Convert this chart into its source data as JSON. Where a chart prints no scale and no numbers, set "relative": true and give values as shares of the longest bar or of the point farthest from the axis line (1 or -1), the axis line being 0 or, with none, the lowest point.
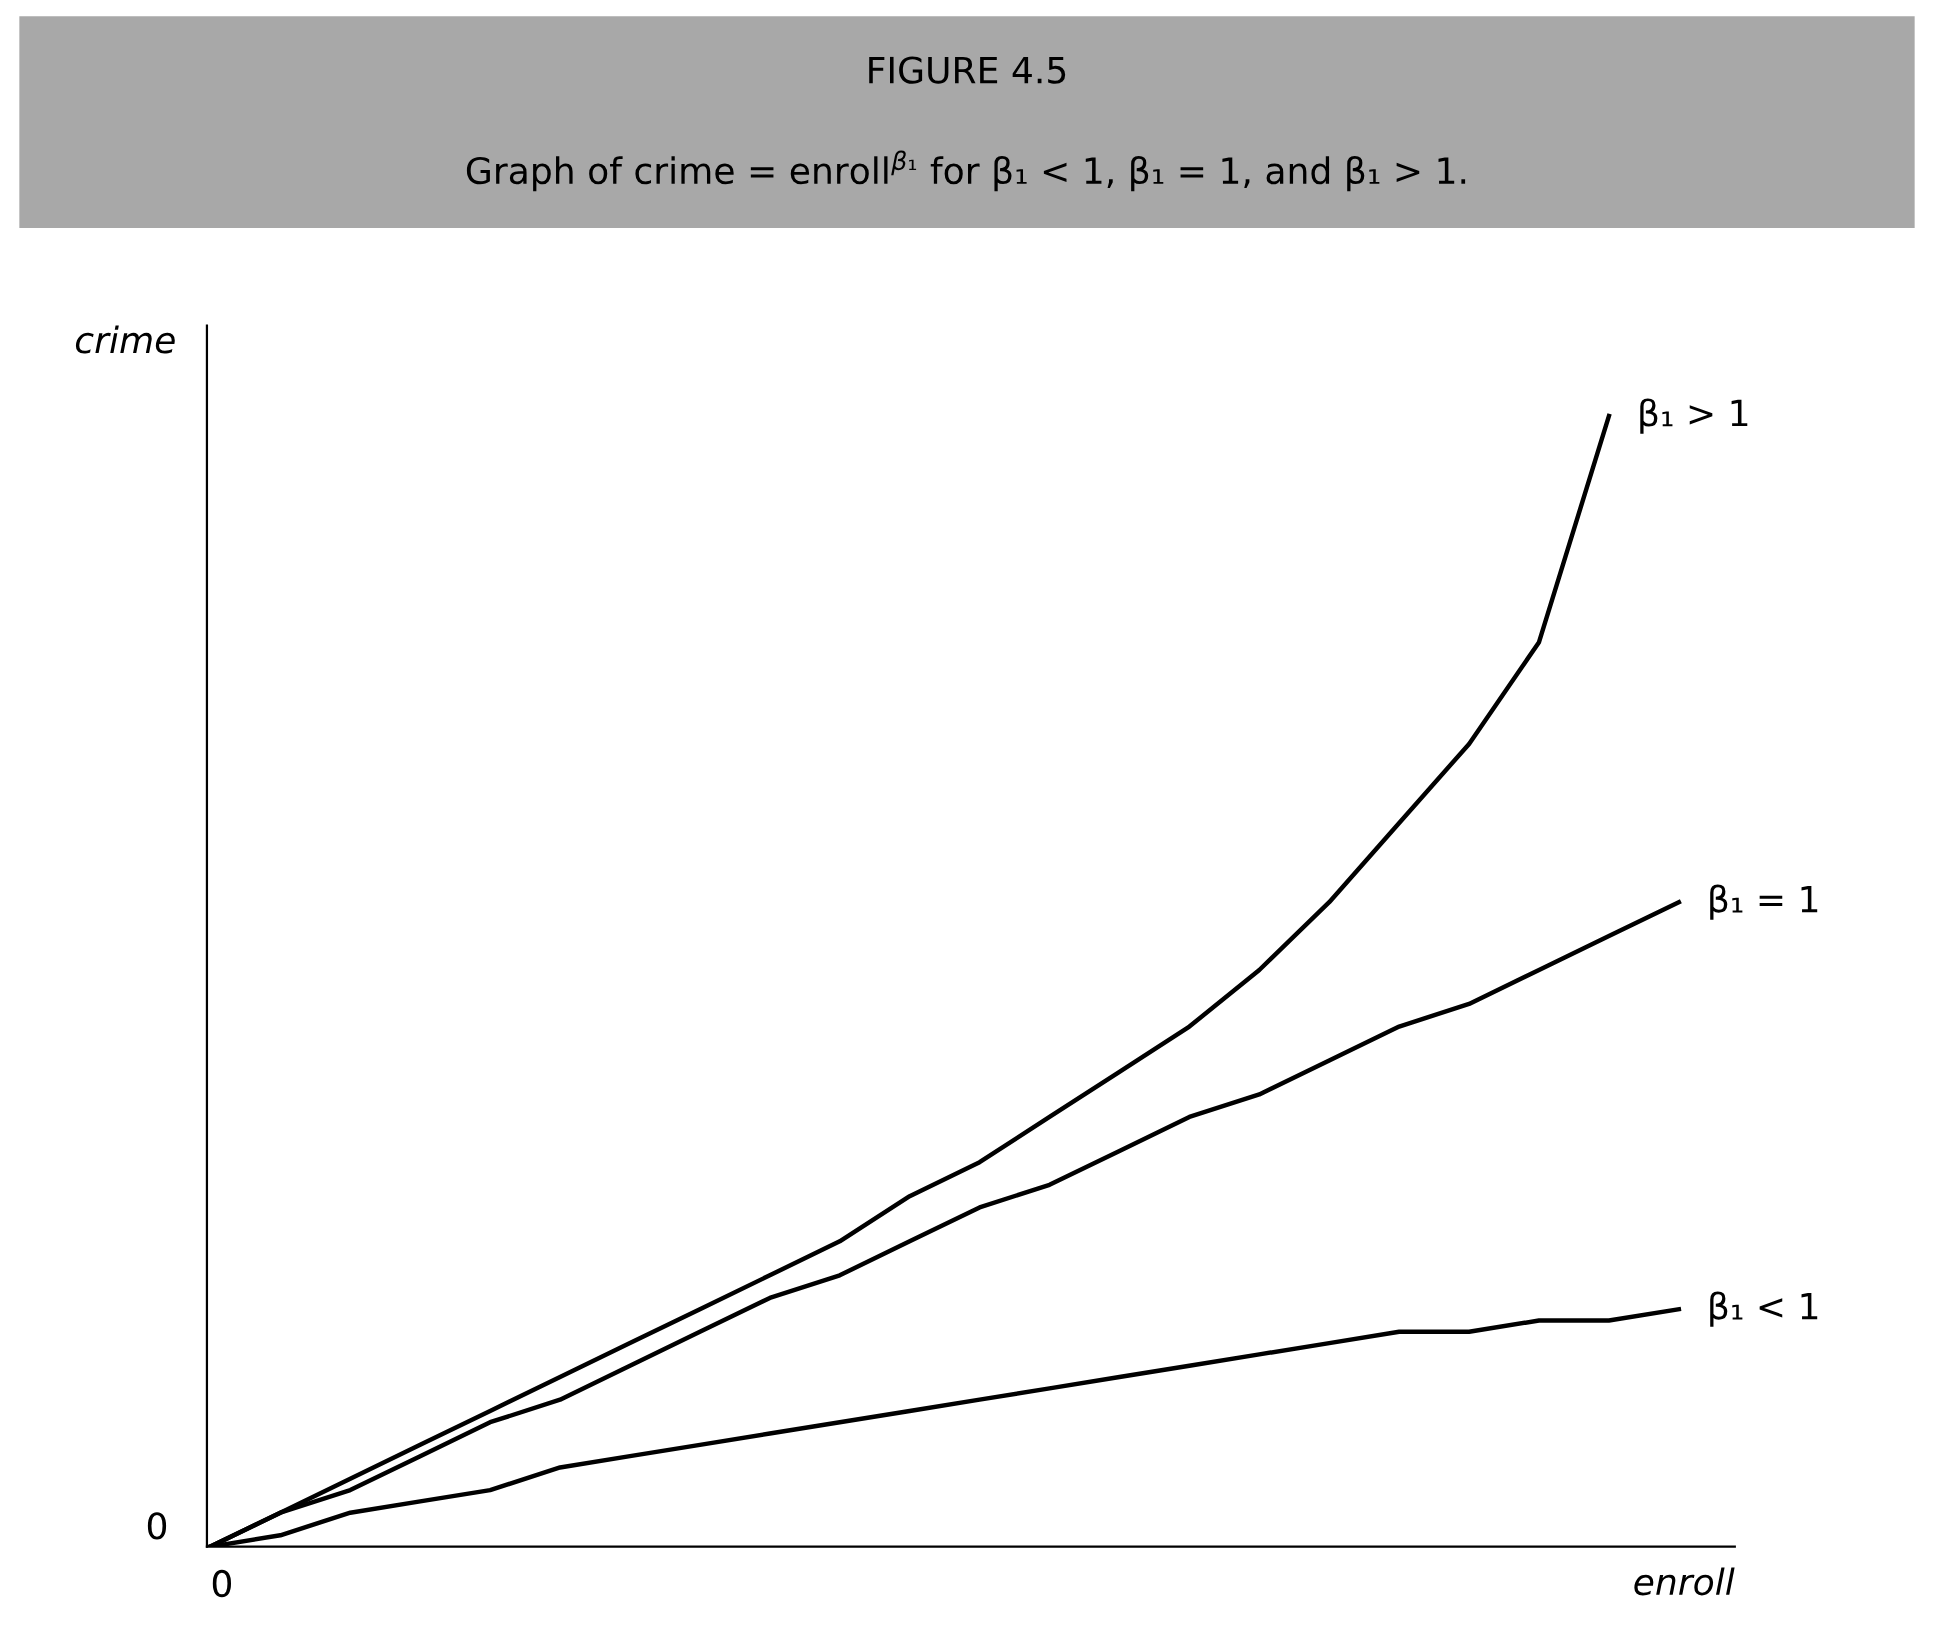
{
  "chart_data": {
    "type": "line",
    "title": "FIGURE 4.5",
    "subtitle": "Graph of crime = enroll$^{β₁}$ for β₁ < 1, β₁ = 1, and β₁ > 1.",
    "xlabel": "enroll",
    "ylabel": "crime",
    "relative": true,
    "grid": false,
    "legend": false,
    "marker": "none",
    "line_style": "solid",
    "annotations": [
      "0",
      "0"
    ],
    "categories": [
      null,
      null,
      null,
      null,
      null,
      null,
      null,
      null,
      null,
      null,
      null,
      null,
      null,
      null,
      null,
      null,
      null,
      null,
      null,
      null,
      null,
      null
    ],
    "series": [
      {
        "name": "β₁ > 1",
        "color": "#000000",
        "values": [
          0,
          0.03,
          0.06,
          0.09,
          0.12,
          0.15,
          0.18,
          0.21,
          0.24,
          0.27,
          0.31,
          0.34,
          0.38,
          0.42,
          0.46,
          0.51,
          0.57,
          0.64,
          0.71,
          0.8,
          1.0,
          null
        ]
      },
      {
        "name": "β₁ = 1",
        "color": "#000000",
        "values": [
          0,
          0.03,
          0.05,
          0.08,
          0.11,
          0.13,
          0.16,
          0.19,
          0.22,
          0.24,
          0.27,
          0.3,
          0.32,
          0.35,
          0.38,
          0.4,
          0.43,
          0.46,
          0.48,
          0.51,
          0.54,
          0.57
        ]
      },
      {
        "name": "β₁ < 1",
        "color": "#000000",
        "values": [
          0,
          0.01,
          0.03,
          0.04,
          0.05,
          0.07,
          0.08,
          0.09,
          0.1,
          0.11,
          0.12,
          0.13,
          0.14,
          0.15,
          0.16,
          0.17,
          0.18,
          0.19,
          0.19,
          0.2,
          0.2,
          0.21
        ]
      }
    ]
  }
}
